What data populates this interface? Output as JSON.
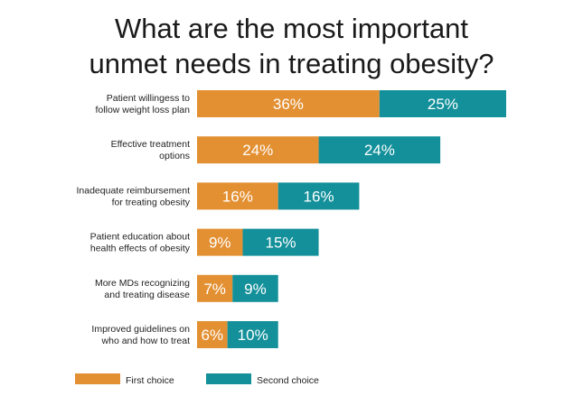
{
  "chart_data": {
    "type": "bar",
    "orientation": "horizontal",
    "stacked": true,
    "title_lines": [
      "What are the most important",
      "unmet needs in treating obesity?"
    ],
    "categories": [
      [
        "Patient willingess to",
        "follow weight loss plan"
      ],
      [
        "Effective treatment",
        "options"
      ],
      [
        "Inadequate reimbursement",
        "for treating obesity"
      ],
      [
        "Patient education about",
        "health effects of obesity"
      ],
      [
        "More MDs recognizing",
        "and treating disease"
      ],
      [
        "Improved guidelines on",
        "who and how to treat"
      ]
    ],
    "series": [
      {
        "name": "First choice",
        "color": "#e39033",
        "values": [
          36,
          24,
          16,
          9,
          7,
          6
        ],
        "labels": [
          "36%",
          "24%",
          "16%",
          "9%",
          "7%",
          "6%"
        ]
      },
      {
        "name": "Second choice",
        "color": "#13909a",
        "values": [
          25,
          24,
          16,
          15,
          9,
          10
        ],
        "labels": [
          "25%",
          "24%",
          "16%",
          "15%",
          "9%",
          "10%"
        ]
      }
    ],
    "value_unit": "%",
    "xlim": [
      0,
      61
    ],
    "axes_visible": false,
    "grid": false,
    "legend_position": "bottom-left"
  }
}
